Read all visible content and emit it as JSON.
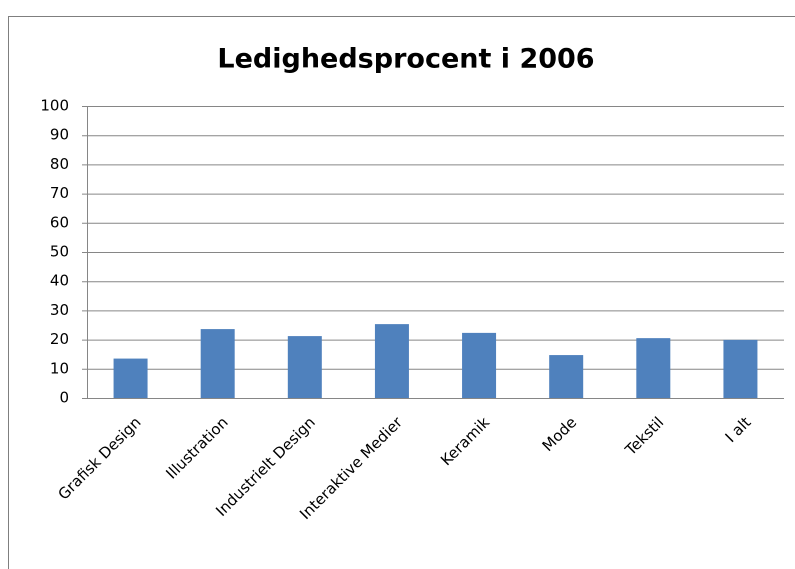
{
  "chart_data": {
    "type": "bar",
    "title": "Ledighedsprocent i 2006",
    "categories": [
      "Grafisk Design",
      "Illustration",
      "Industrielt Design",
      "Interaktive Medier",
      "Keramik",
      "Mode",
      "Tekstil",
      "I alt"
    ],
    "values": [
      13.5,
      23.6,
      21.2,
      25.3,
      22.3,
      14.7,
      20.5,
      19.9
    ],
    "color": "#4f81bd",
    "ylim": [
      0,
      100
    ],
    "yticks": [
      0,
      10,
      20,
      30,
      40,
      50,
      60,
      70,
      80,
      90,
      100
    ],
    "grid": true
  }
}
